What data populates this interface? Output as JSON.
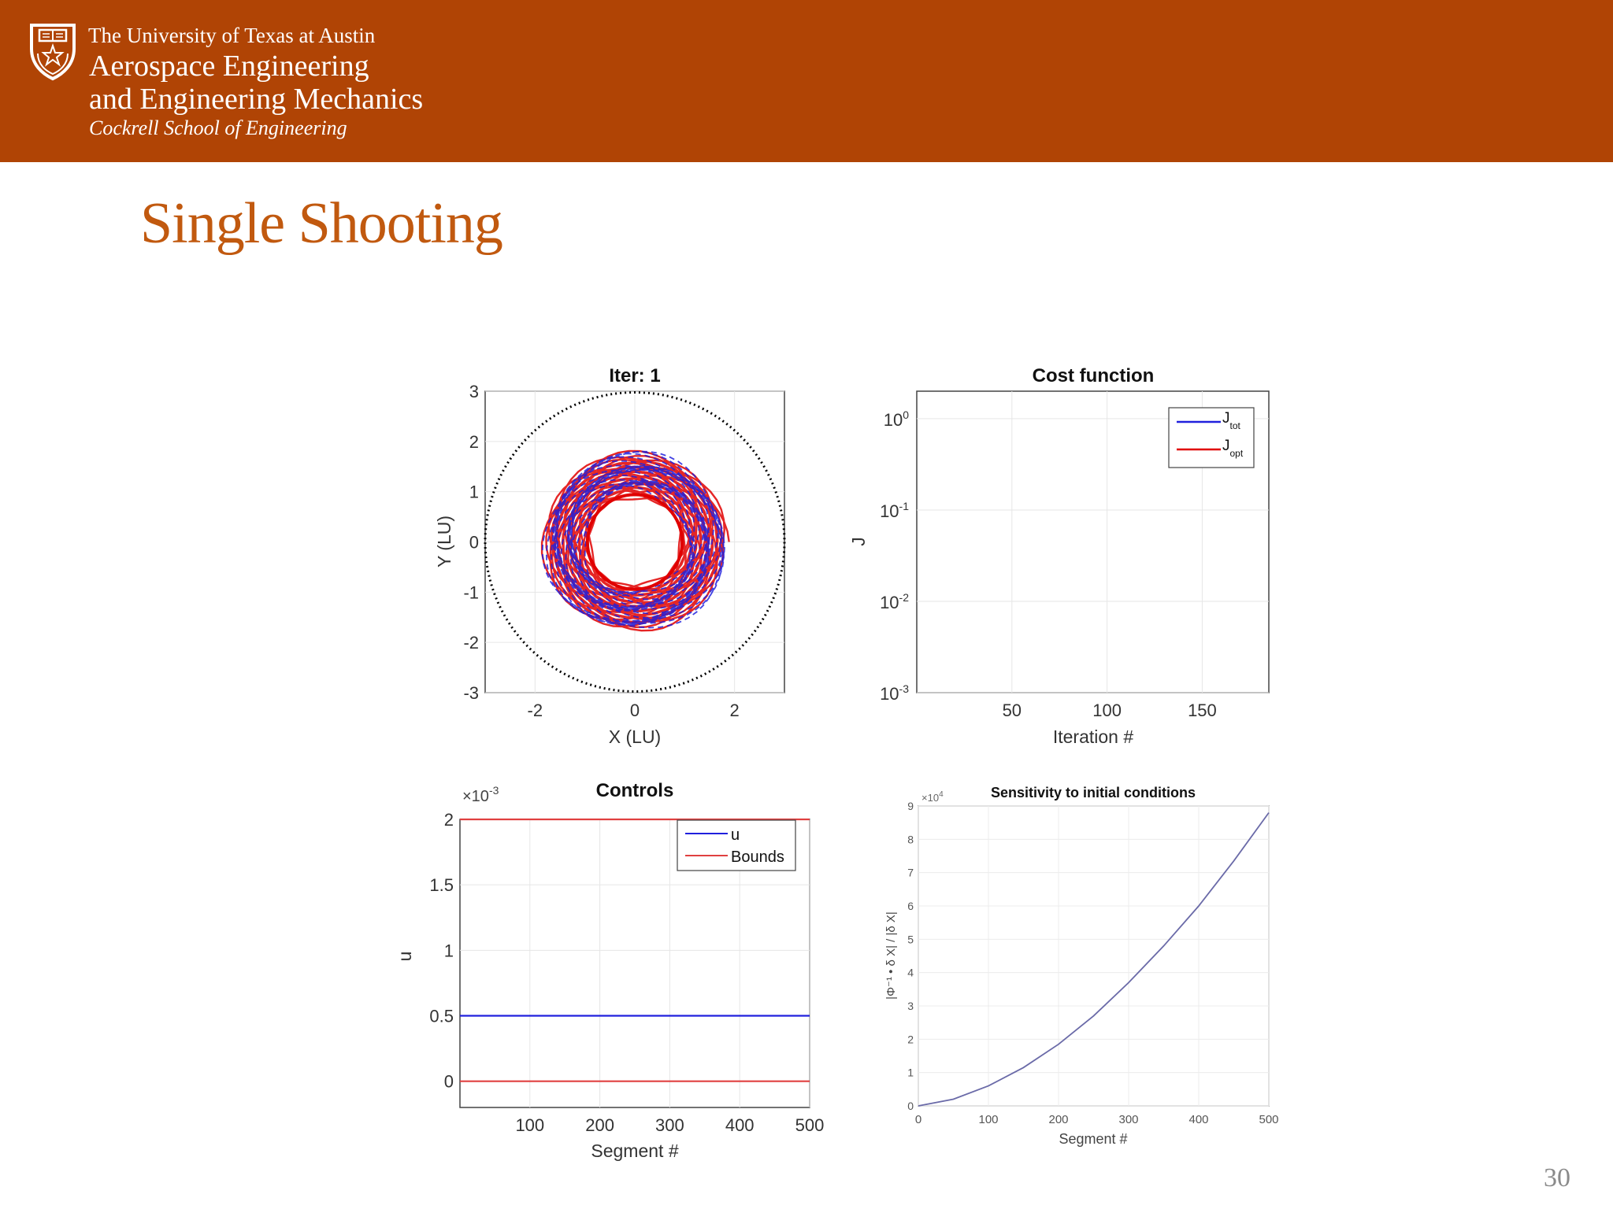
{
  "header": {
    "university": "The University of Texas at Austin",
    "department_line1": "Aerospace Engineering",
    "department_line2": "and Engineering Mechanics",
    "school": "Cockrell School of Engineering",
    "background_color": "#b04405",
    "logo_icon": "ut-shield-icon"
  },
  "slide": {
    "title": "Single Shooting",
    "page_number": "30",
    "title_color": "#c1590f"
  },
  "chart_data": [
    {
      "type": "scatter",
      "title": "Iter: 1",
      "xlabel": "X (LU)",
      "ylabel": "Y (LU)",
      "xlim": [
        -3,
        3
      ],
      "ylim": [
        -3,
        3
      ],
      "xticks": [
        -2,
        0,
        2
      ],
      "yticks": [
        3,
        2,
        1,
        0,
        -1,
        -2,
        -3
      ],
      "grid": true,
      "boundary_circle": {
        "radius": 3,
        "style": "dotted",
        "color": "#000000"
      },
      "spiral": {
        "inner_radius": 0.95,
        "outer_radius": 1.8,
        "colors": [
          "#e00000",
          "#2020dd"
        ]
      }
    },
    {
      "type": "line",
      "title": "Cost function",
      "xlabel": "Iteration #",
      "ylabel": "J",
      "yscale": "log",
      "xlim": [
        0,
        185
      ],
      "ylim": [
        0.001,
        2
      ],
      "xticks": [
        50,
        100,
        150
      ],
      "yticks": [
        {
          "base": "10",
          "exp": "0"
        },
        {
          "base": "10",
          "exp": "-1"
        },
        {
          "base": "10",
          "exp": "-2"
        },
        {
          "base": "10",
          "exp": "-3"
        }
      ],
      "grid": true,
      "legend_position": "top-right",
      "series": [
        {
          "name": "J",
          "subscript": "tot",
          "color": "#2020dd",
          "values": []
        },
        {
          "name": "J",
          "subscript": "opt",
          "color": "#e00000",
          "values": []
        }
      ]
    },
    {
      "type": "line",
      "title": "Controls",
      "xlabel": "Segment #",
      "ylabel": "u",
      "multiplier": {
        "prefix": "×10",
        "exp": "-3"
      },
      "xlim": [
        0,
        500
      ],
      "ylim": [
        -0.0002,
        0.002
      ],
      "xticks": [
        100,
        200,
        300,
        400,
        500
      ],
      "yticks": [
        "2",
        "1.5",
        "1",
        "0.5",
        "0"
      ],
      "grid": true,
      "legend_position": "top-right",
      "series": [
        {
          "name": "u",
          "color": "#2020dd",
          "x": [
            0,
            500
          ],
          "values": [
            0.0005,
            0.0005
          ]
        },
        {
          "name": "Bounds",
          "color": "#e04040",
          "x": [
            0,
            500
          ],
          "values": [
            0.002,
            0.002
          ]
        },
        {
          "name": "",
          "color": "#e04040",
          "x": [
            0,
            500
          ],
          "values": [
            0,
            0
          ]
        }
      ]
    },
    {
      "type": "line",
      "title": "Sensitivity to initial conditions",
      "xlabel": "Segment #",
      "ylabel": "|Φ⁻¹ • δ X| / |δ X|",
      "multiplier": {
        "prefix": "×10",
        "exp": "4"
      },
      "xlim": [
        0,
        500
      ],
      "ylim": [
        0,
        90000
      ],
      "xticks": [
        0,
        100,
        200,
        300,
        400,
        500
      ],
      "yticks": [
        0,
        1,
        2,
        3,
        4,
        5,
        6,
        7,
        8,
        9
      ],
      "grid": true,
      "series": [
        {
          "name": "",
          "color": "#6a6aa8",
          "x": [
            0,
            50,
            100,
            150,
            200,
            250,
            300,
            350,
            400,
            450,
            500
          ],
          "values": [
            0,
            2000,
            6000,
            11500,
            18500,
            27000,
            37000,
            48000,
            60000,
            73500,
            88000
          ]
        }
      ]
    }
  ]
}
